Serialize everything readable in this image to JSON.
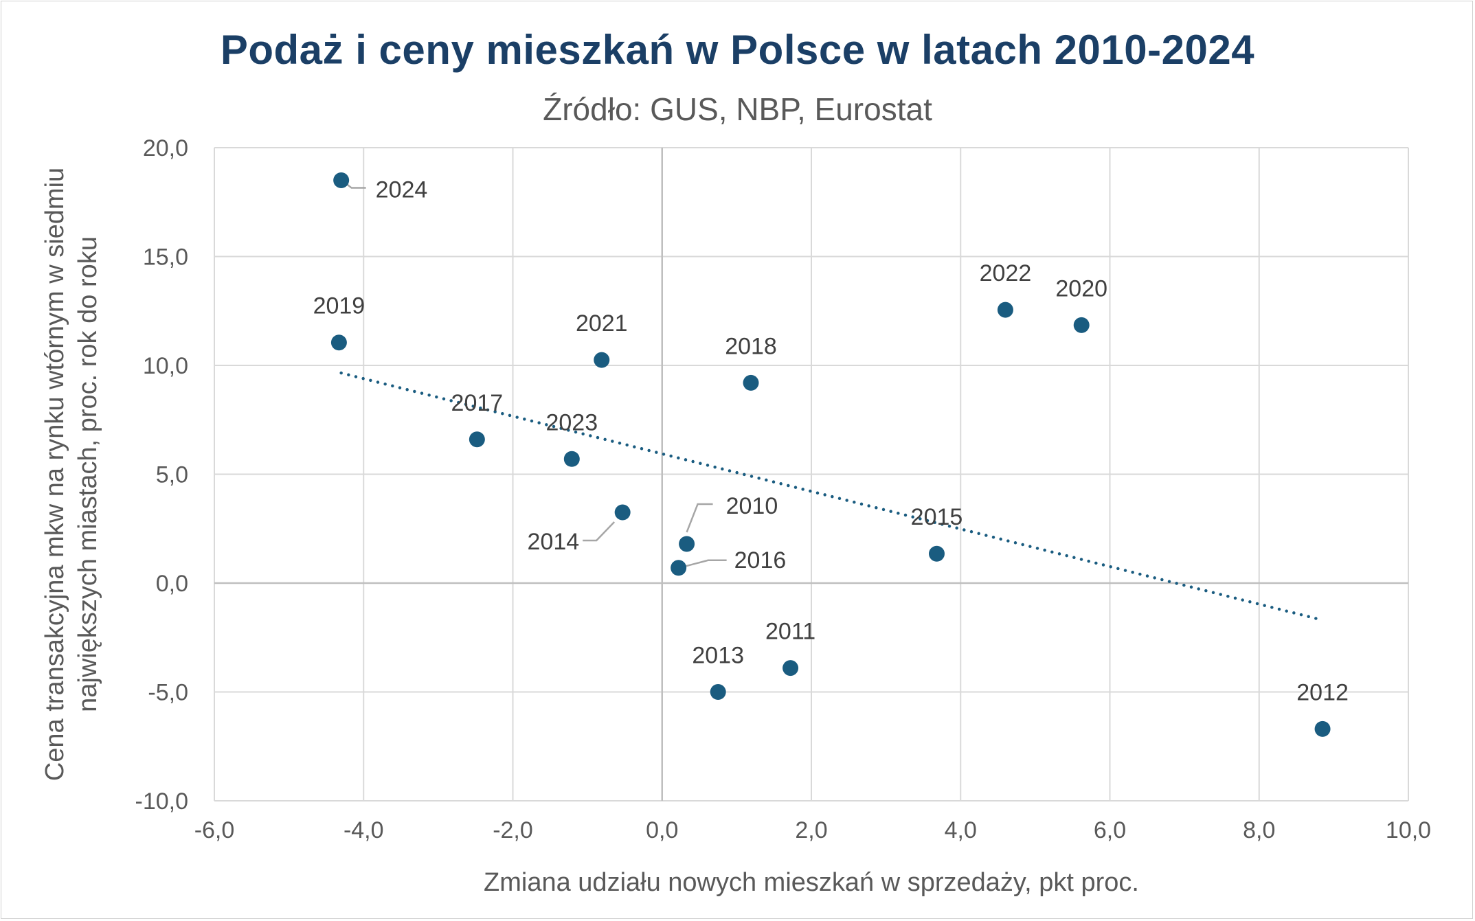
{
  "chart_data": {
    "type": "scatter",
    "title": "Podaż i ceny mieszkań w Polsce w latach 2010-2024",
    "subtitle": "Źródło: GUS, NBP, Eurostat",
    "xlabel": "Zmiana udziału nowych mieszkań w sprzedaży, pkt proc.",
    "ylabel_lines": [
      "Cena transakcyjna mkw na rynku wtórnym w siedmiu",
      "największych miastach, proc. rok do roku"
    ],
    "xlim": [
      -6,
      10
    ],
    "ylim": [
      -10,
      20
    ],
    "x_ticks": [
      -6,
      -4,
      -2,
      0,
      2,
      4,
      6,
      8,
      10
    ],
    "y_ticks": [
      -10,
      -5,
      0,
      5,
      10,
      15,
      20
    ],
    "x_tick_labels": [
      "-6,0",
      "-4,0",
      "-2,0",
      "0,0",
      "2,0",
      "4,0",
      "6,0",
      "8,0",
      "10,0"
    ],
    "y_tick_labels": [
      "-10,0",
      "-5,0",
      "0,0",
      "5,0",
      "10,0",
      "15,0",
      "20,0"
    ],
    "grid": true,
    "marker_color": "#1a5c80",
    "trendline": {
      "style": "dotted",
      "color": "#1a5c80",
      "x": [
        -4.3,
        8.85
      ],
      "y": [
        9.65,
        -1.7
      ]
    },
    "points": [
      {
        "label": "2010",
        "x": 0.33,
        "y": 1.8
      },
      {
        "label": "2011",
        "x": 1.72,
        "y": -3.9
      },
      {
        "label": "2012",
        "x": 8.85,
        "y": -6.7
      },
      {
        "label": "2013",
        "x": 0.75,
        "y": -5.0
      },
      {
        "label": "2014",
        "x": -0.53,
        "y": 3.25
      },
      {
        "label": "2015",
        "x": 3.68,
        "y": 1.35
      },
      {
        "label": "2016",
        "x": 0.22,
        "y": 0.7
      },
      {
        "label": "2017",
        "x": -2.48,
        "y": 6.6
      },
      {
        "label": "2018",
        "x": 1.19,
        "y": 9.2
      },
      {
        "label": "2019",
        "x": -4.33,
        "y": 11.05
      },
      {
        "label": "2020",
        "x": 5.62,
        "y": 11.85
      },
      {
        "label": "2021",
        "x": -0.81,
        "y": 10.25
      },
      {
        "label": "2022",
        "x": 4.6,
        "y": 12.55
      },
      {
        "label": "2023",
        "x": -1.21,
        "y": 5.7
      },
      {
        "label": "2024",
        "x": -4.3,
        "y": 18.5
      }
    ]
  }
}
